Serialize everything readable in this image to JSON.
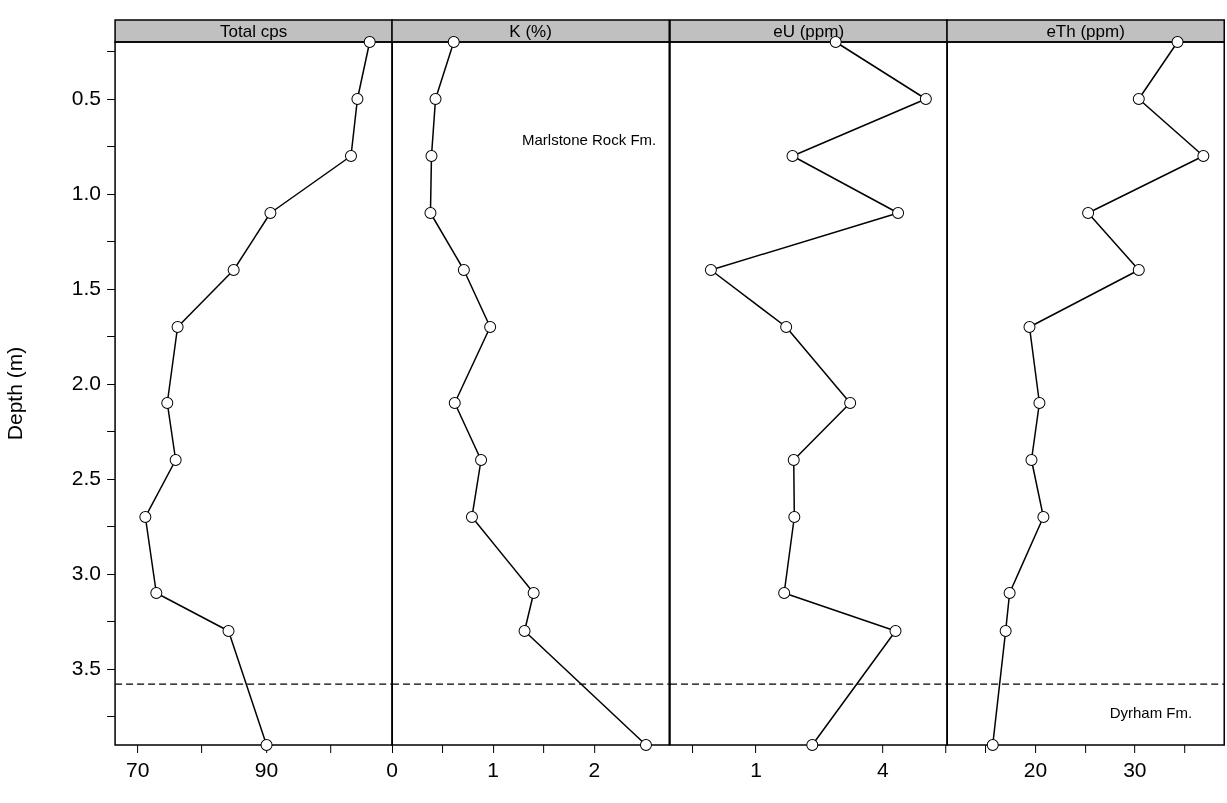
{
  "chart_data": [
    {
      "type": "line",
      "title": "Total cps",
      "ylabel": "Depth (m)",
      "xlim": [
        66.5,
        109.5
      ],
      "xticks": [
        70,
        {
          "value": 80,
          "label": null
        },
        90,
        {
          "value": 100,
          "label": null
        }
      ],
      "ylim": [
        3.9,
        0.2
      ],
      "yticks": [
        {
          "value": 0.25,
          "label": null
        },
        0.5,
        {
          "value": 0.75,
          "label": null
        },
        {
          "value": 1,
          "label": "1.0"
        },
        {
          "value": 1.25,
          "label": null
        },
        1.5,
        {
          "value": 1.75,
          "label": null
        },
        {
          "value": 2,
          "label": "2.0"
        },
        {
          "value": 2.25,
          "label": null
        },
        2.5,
        {
          "value": 2.75,
          "label": null
        },
        {
          "value": 3,
          "label": "3.0"
        },
        {
          "value": 3.25,
          "label": null
        },
        3.5,
        {
          "value": 3.75,
          "label": null
        }
      ],
      "grid": false,
      "legend": false,
      "marker": "circle",
      "line_style": "solid",
      "series": [
        {
          "color": "#000000",
          "x": [
            106.0,
            104.1,
            103.1,
            90.6,
            84.9,
            76.2,
            74.6,
            75.9,
            71.2,
            72.9,
            84.1,
            90.0
          ],
          "values": [
            0.2,
            0.5,
            0.8,
            1.1,
            1.4,
            1.7,
            2.1,
            2.4,
            2.7,
            3.1,
            3.3,
            3.9
          ]
        }
      ],
      "ref_lines": [
        {
          "axis": "y",
          "value": 3.58,
          "color": "#000000",
          "line_style": "dashed"
        }
      ]
    },
    {
      "type": "line",
      "title": "K (%)",
      "xlim": [
        0,
        2.74
      ],
      "xticks": [
        0,
        {
          "value": 0.5,
          "label": null
        },
        1,
        {
          "value": 1.5,
          "label": null
        },
        2
      ],
      "ylim": [
        3.9,
        0.2
      ],
      "tick_labels": "x",
      "grid": false,
      "legend": false,
      "marker": "circle",
      "line_style": "solid",
      "series": [
        {
          "color": "#000000",
          "x": [
            0.61,
            0.43,
            0.39,
            0.38,
            0.71,
            0.97,
            0.62,
            0.88,
            0.79,
            1.4,
            1.31,
            2.51
          ],
          "values": [
            0.2,
            0.5,
            0.8,
            1.1,
            1.4,
            1.7,
            2.1,
            2.4,
            2.7,
            3.1,
            3.3,
            3.9
          ]
        }
      ],
      "ref_lines": [
        {
          "axis": "y",
          "value": 3.58,
          "color": "#000000",
          "line_style": "dashed"
        }
      ],
      "annotations": [
        "Marlstone Rock Fm."
      ]
    },
    {
      "type": "line",
      "title": "eU (ppm)",
      "log": "x",
      "xlim": [
        0.39,
        8.1
      ],
      "xticks": [
        {
          "value": 0.5,
          "label": null
        },
        1,
        4,
        {
          "value": 8,
          "label": null
        }
      ],
      "ylim": [
        3.9,
        0.2
      ],
      "tick_labels": "x",
      "grid": false,
      "legend": false,
      "marker": "circle",
      "line_style": "solid",
      "series": [
        {
          "color": "#000000",
          "x": [
            2.39,
            6.41,
            1.49,
            4.73,
            0.61,
            1.39,
            2.8,
            1.51,
            1.52,
            1.36,
            4.6,
            1.85
          ],
          "values": [
            0.2,
            0.5,
            0.8,
            1.1,
            1.4,
            1.7,
            2.1,
            2.4,
            2.7,
            3.1,
            3.3,
            3.9
          ]
        }
      ],
      "ref_lines": [
        {
          "axis": "y",
          "value": 3.58,
          "color": "#000000",
          "line_style": "dashed"
        }
      ]
    },
    {
      "type": "line",
      "title": "eTh (ppm)",
      "xlim": [
        11.1,
        39
      ],
      "xticks": [
        {
          "value": 15,
          "label": null
        },
        20,
        {
          "value": 25,
          "label": null
        },
        30,
        {
          "value": 35,
          "label": null
        }
      ],
      "ylim": [
        3.9,
        0.2
      ],
      "tick_labels": "x",
      "grid": false,
      "legend": false,
      "marker": "circle",
      "line_style": "solid",
      "series": [
        {
          "color": "#000000",
          "x": [
            34.3,
            30.4,
            36.9,
            25.3,
            30.4,
            19.4,
            20.4,
            19.6,
            20.8,
            17.4,
            17.0,
            15.7
          ],
          "values": [
            0.2,
            0.5,
            0.8,
            1.1,
            1.4,
            1.7,
            2.1,
            2.4,
            2.7,
            3.1,
            3.3,
            3.9
          ]
        }
      ],
      "ref_lines": [
        {
          "axis": "y",
          "value": 3.58,
          "color": "#000000",
          "line_style": "dashed"
        }
      ],
      "annotations": [
        "Dyrham Fm."
      ]
    }
  ]
}
